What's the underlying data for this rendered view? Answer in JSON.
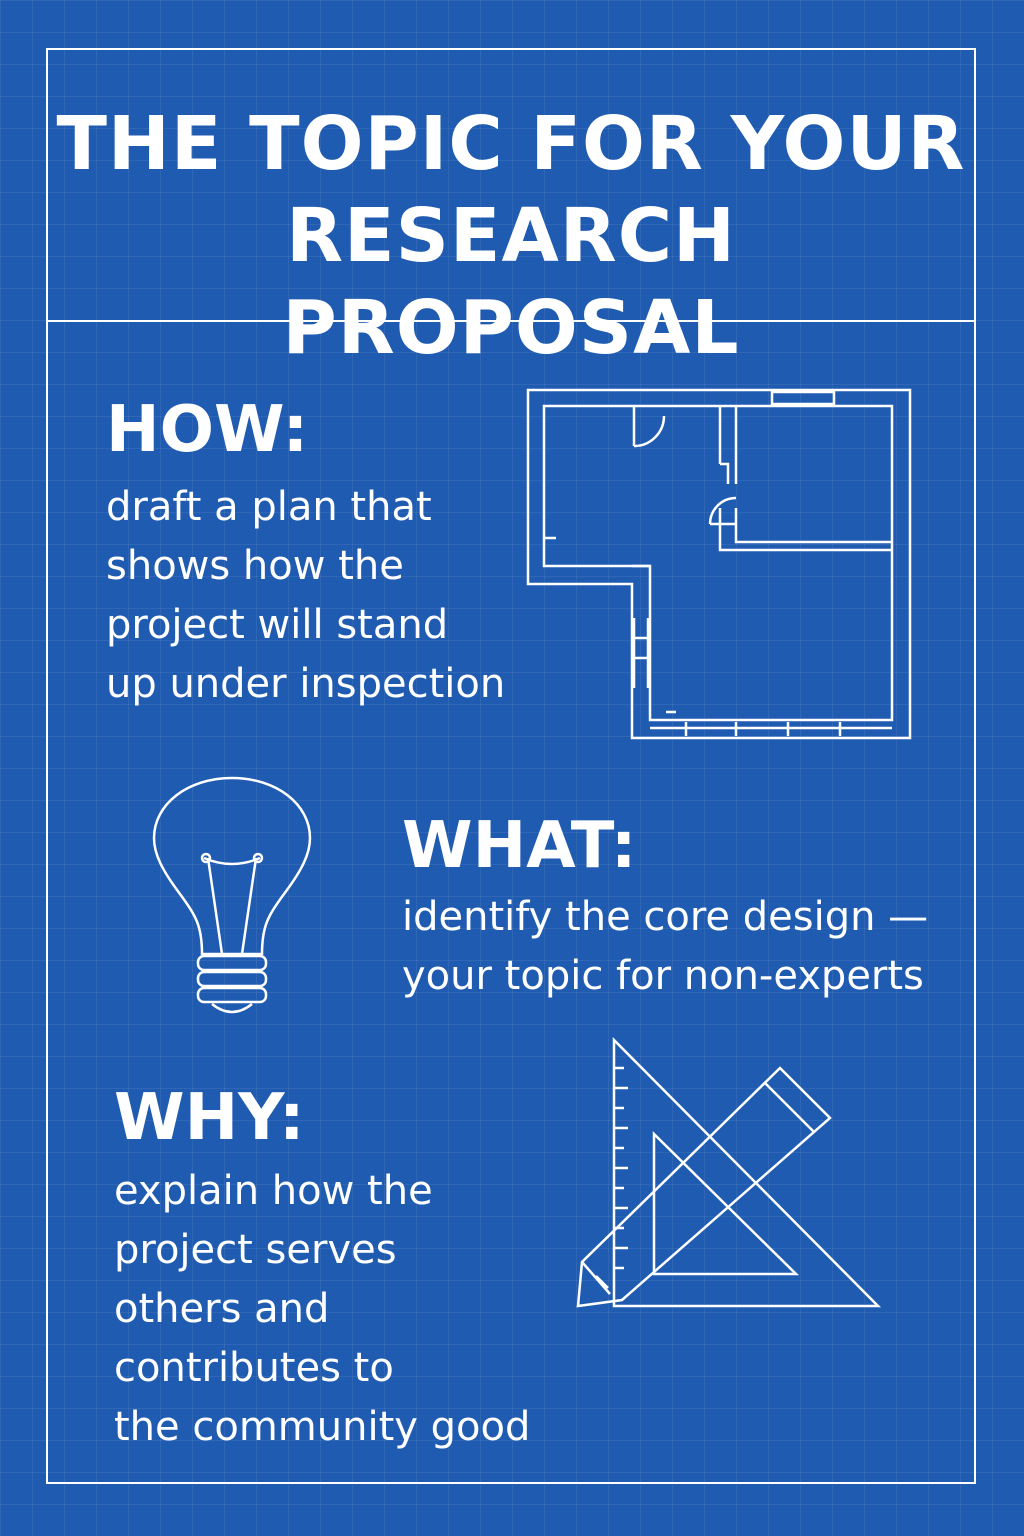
{
  "title": {
    "line1": "THE TOPIC FOR YOUR",
    "line2": "RESEARCH PROPOSAL"
  },
  "how": {
    "heading": "HOW:",
    "lines": [
      "draft a plan that",
      "shows how the",
      "project will stand",
      "up under inspection"
    ],
    "icon": "floor-plan-icon"
  },
  "what": {
    "heading": "WHAT:",
    "lines": [
      "identify the core design —",
      "your topic for non-experts"
    ],
    "icon": "light-bulb-icon"
  },
  "why": {
    "heading": "WHY:",
    "lines": [
      "explain how the",
      "project serves",
      "others and",
      "contributes to",
      "the community good"
    ],
    "icon": "triangle-ruler-pencil-icon"
  },
  "colors": {
    "background": "#1f5bb0",
    "lines": "#ffffff"
  }
}
